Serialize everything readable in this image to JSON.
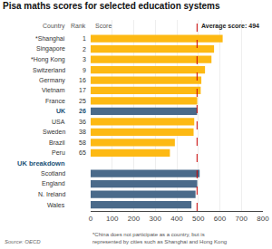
{
  "chart_data": {
    "type": "bar",
    "orientation": "horizontal",
    "title": "Pisa maths scores for selected education systems",
    "categories": [
      "*Shanghai",
      "Singapore",
      "*Hong Kong",
      "Switzerland",
      "Germany",
      "Vietnam",
      "France",
      "UK",
      "USA",
      "Sweden",
      "Brazil",
      "Peru",
      "UK breakdown",
      "Scotland",
      "England",
      "N. Ireland",
      "Wales"
    ],
    "values": [
      613,
      573,
      561,
      531,
      514,
      511,
      495,
      494,
      481,
      478,
      391,
      368,
      null,
      506,
      495,
      487,
      468
    ],
    "colors": [
      "#FDB913",
      "#FDB913",
      "#FDB913",
      "#FDB913",
      "#FDB913",
      "#FDB913",
      "#FDB913",
      "#4A6A8A",
      "#FDB913",
      "#FDB913",
      "#FDB913",
      "#FDB913",
      null,
      "#4A6A8A",
      "#4A6A8A",
      "#4A6A8A",
      "#4A6A8A"
    ],
    "ranks": [
      1,
      2,
      3,
      9,
      16,
      17,
      25,
      26,
      36,
      38,
      58,
      65,
      null,
      null,
      null,
      null,
      null
    ],
    "average": {
      "value": 494,
      "label": "Average score: 494",
      "color": "#CC0000"
    },
    "column_headers": {
      "country": "Country",
      "rank": "Rank",
      "score": "Score"
    },
    "xlim": [
      0,
      800
    ],
    "xticks": [
      0,
      100,
      200,
      300,
      400,
      500,
      600,
      700,
      800
    ],
    "grid": true,
    "footnote": "*China does not participate as a country, but is\nrepresented by cities such as Shanghai and Hong Kong",
    "source": "Source: OECD"
  }
}
